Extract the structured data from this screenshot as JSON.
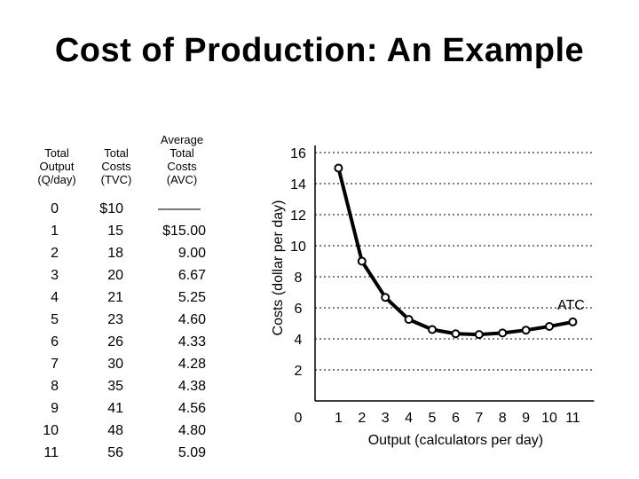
{
  "title": "Cost of Production: An Example",
  "table": {
    "headers": [
      [
        "Total",
        "Output",
        "(Q/day)"
      ],
      [
        "Total",
        "Costs",
        "(TVC)"
      ],
      [
        "Average",
        "Total",
        "Costs",
        "(AVC)"
      ]
    ],
    "columns": [
      [
        "0",
        "1",
        "2",
        "3",
        "4",
        "5",
        "6",
        "7",
        "8",
        "9",
        "10",
        "11"
      ],
      [
        "$10",
        "15",
        "18",
        "20",
        "21",
        "23",
        "26",
        "30",
        "35",
        "41",
        "48",
        "56"
      ],
      [
        "———",
        "$15.00",
        "9.00",
        "6.67",
        "5.25",
        "4.60",
        "4.33",
        "4.28",
        "4.38",
        "4.56",
        "4.80",
        "5.09"
      ]
    ]
  },
  "chart_data": {
    "type": "line",
    "xlabel": "Output (calculators per day)",
    "ylabel": "Costs (dollar per day)",
    "xlim": [
      0,
      11
    ],
    "ylim": [
      0,
      16
    ],
    "x_ticks": [
      0,
      1,
      2,
      3,
      4,
      5,
      6,
      7,
      8,
      9,
      10,
      11
    ],
    "x_tick_labels": [
      "0",
      "1",
      "2",
      "3",
      "4",
      "5",
      "6",
      "7",
      "8",
      "9",
      "10",
      "11"
    ],
    "y_ticks": [
      2,
      4,
      6,
      8,
      10,
      12,
      14,
      16
    ],
    "y_tick_labels": [
      "2",
      "4",
      "6",
      "8",
      "10",
      "12",
      "14",
      "16"
    ],
    "grid": "horizontal-dotted",
    "annotation": "ATC",
    "series": [
      {
        "x": [
          1,
          2,
          3,
          4,
          5,
          6,
          7,
          8,
          9,
          10,
          11
        ],
        "values": [
          15.0,
          9.0,
          6.67,
          5.25,
          4.6,
          4.33,
          4.28,
          4.38,
          4.56,
          4.8,
          5.09
        ],
        "color": "#000000"
      }
    ]
  }
}
